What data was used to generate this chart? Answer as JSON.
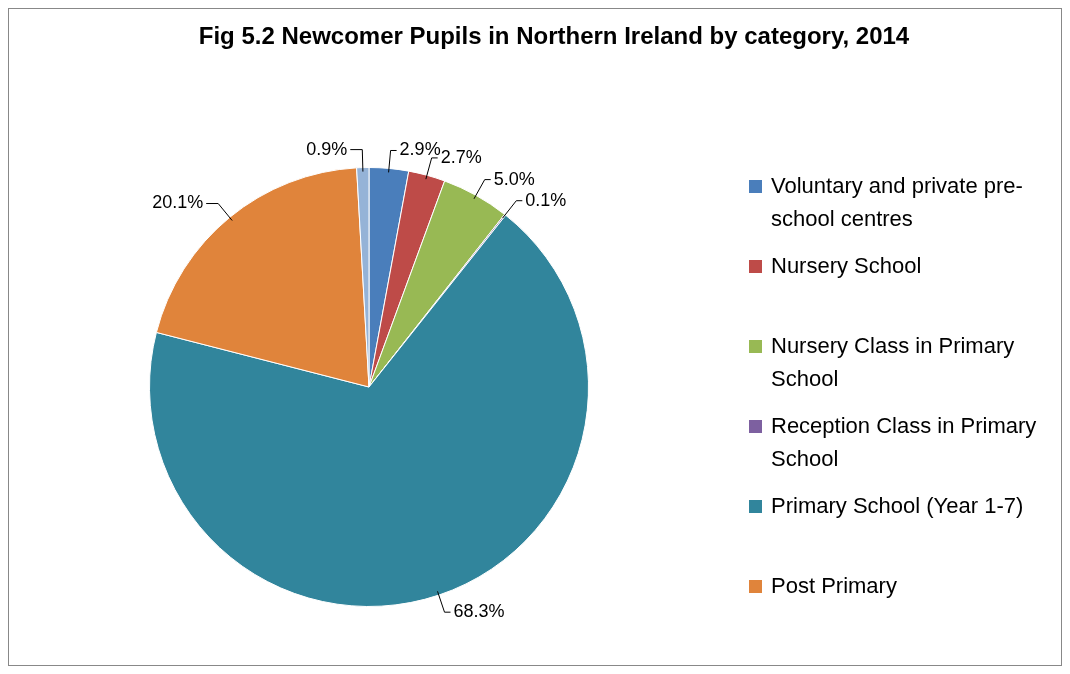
{
  "chart_data": {
    "type": "pie",
    "title": "Fig 5.2 Newcomer Pupils in Northern Ireland by category, 2014",
    "categories": [
      "Voluntary and private pre-school centres",
      "Nursery School",
      "Nursery Class in Primary School",
      "Reception Class in Primary School",
      "Primary School (Year 1-7)",
      "Post Primary",
      null
    ],
    "values": [
      2.9,
      2.7,
      5.0,
      0.1,
      68.3,
      20.1,
      0.9
    ],
    "colors": [
      "#4a7ebb",
      "#be4b48",
      "#98b954",
      "#7d60a0",
      "#31859c",
      "#e0843b",
      "#95b3d7"
    ],
    "value_labels": [
      "2.9%",
      "2.7%",
      "5.0%",
      "0.1%",
      "68.3%",
      "20.1%",
      "0.9%"
    ],
    "legend": "right"
  }
}
